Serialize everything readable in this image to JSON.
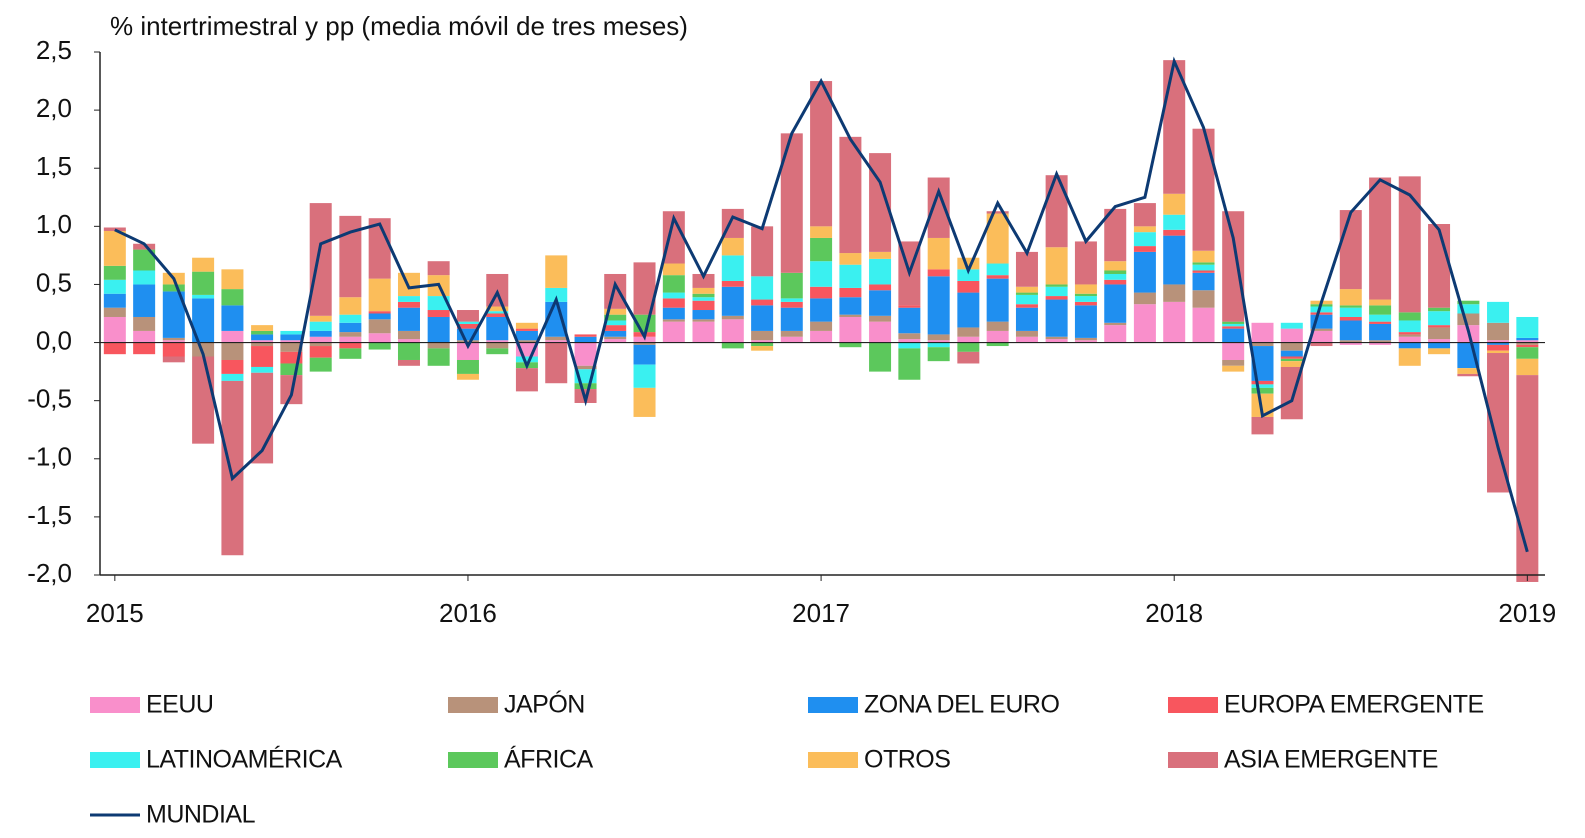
{
  "chart_data": {
    "type": "bar",
    "stacked": true,
    "title": "% intertrimestral y pp (media móvil de tres meses)",
    "x": [
      2015,
      2015.083,
      2015.167,
      2015.25,
      2015.333,
      2015.417,
      2015.5,
      2015.583,
      2015.667,
      2015.75,
      2015.833,
      2015.917,
      2016,
      2016.083,
      2016.167,
      2016.25,
      2016.333,
      2016.417,
      2016.5,
      2016.583,
      2016.667,
      2016.75,
      2016.833,
      2016.917,
      2017,
      2017.083,
      2017.167,
      2017.25,
      2017.333,
      2017.417,
      2017.5,
      2017.583,
      2017.667,
      2017.75,
      2017.833,
      2017.917,
      2018,
      2018.083,
      2018.167,
      2018.25,
      2018.333,
      2018.417,
      2018.5,
      2018.583,
      2018.667,
      2018.75,
      2018.833,
      2018.917,
      2019
    ],
    "xlim": [
      2014.958,
      2019.05
    ],
    "xticks": [
      2015,
      2016,
      2017,
      2018,
      2019
    ],
    "ylim": [
      -2.0,
      2.5
    ],
    "yticks": [
      {
        "value": -2.0,
        "label": "-2,0"
      },
      {
        "value": -1.5,
        "label": "-1,5"
      },
      {
        "value": -1.0,
        "label": "-1,0"
      },
      {
        "value": -0.5,
        "label": "-0,5"
      },
      {
        "value": 0.0,
        "label": "0,0"
      },
      {
        "value": 0.5,
        "label": "0,5"
      },
      {
        "value": 1.0,
        "label": "1,0"
      },
      {
        "value": 1.5,
        "label": "1,5"
      },
      {
        "value": 2.0,
        "label": "2,0"
      },
      {
        "value": 2.5,
        "label": "2,5"
      }
    ],
    "series": [
      {
        "name": "EEUU",
        "color": "#f98fcb",
        "values": [
          0.22,
          0.1,
          0.02,
          0,
          0.1,
          0.02,
          0.02,
          0.05,
          0.05,
          0.08,
          0.03,
          0,
          -0.15,
          0.02,
          -0.12,
          0.02,
          -0.2,
          0.03,
          0.05,
          0.18,
          0.18,
          0.2,
          0.02,
          0.05,
          0.1,
          0.22,
          0.18,
          0.03,
          0.02,
          0.05,
          0.1,
          0.05,
          0.03,
          0.02,
          0.15,
          0.33,
          0.35,
          0.3,
          -0.15,
          0.17,
          0.12,
          0.1,
          -0.02,
          -0.02,
          0.05,
          0.03,
          0.15,
          0.02,
          0.02
        ]
      },
      {
        "name": "JAPÓN",
        "color": "#b8927a",
        "values": [
          0.08,
          0.12,
          0.02,
          -0.12,
          -0.15,
          -0.03,
          -0.08,
          -0.03,
          0.04,
          0.12,
          0.07,
          -0.05,
          0.02,
          -0.05,
          0.02,
          0.03,
          -0.03,
          0.02,
          -0.02,
          0.02,
          0.02,
          0.03,
          0.08,
          0.05,
          0.08,
          0.02,
          0.05,
          0.05,
          0.05,
          0.08,
          0.08,
          0.05,
          0.02,
          0.02,
          0.02,
          0.1,
          0.15,
          0.15,
          -0.05,
          -0.03,
          -0.07,
          0.02,
          0.02,
          0.02,
          0.02,
          0.1,
          0.1,
          0.15,
          -0.02
        ]
      },
      {
        "name": "ZONA DEL EURO",
        "color": "#1f8ff0",
        "values": [
          0.12,
          0.28,
          0.4,
          0.38,
          0.22,
          0.05,
          0.05,
          0.05,
          0.08,
          0.05,
          0.2,
          0.22,
          0.1,
          0.2,
          0.08,
          0.3,
          0.05,
          0.05,
          -0.17,
          0.1,
          0.08,
          0.25,
          0.22,
          0.2,
          0.2,
          0.15,
          0.22,
          0.22,
          0.5,
          0.3,
          0.37,
          0.2,
          0.32,
          0.28,
          0.33,
          0.35,
          0.42,
          0.15,
          0.12,
          -0.3,
          -0.05,
          0.12,
          0.17,
          0.14,
          -0.05,
          -0.05,
          -0.22,
          -0.02,
          0.02
        ]
      },
      {
        "name": "EUROPA EMERGENTE",
        "color": "#f8565e",
        "values": [
          -0.1,
          -0.1,
          -0.12,
          0,
          -0.12,
          -0.18,
          -0.1,
          -0.1,
          -0.05,
          0.02,
          0.05,
          0.06,
          0.04,
          0.03,
          0.02,
          0,
          0.02,
          0.05,
          0.04,
          0.08,
          0.08,
          0.05,
          0.05,
          0.05,
          0.1,
          0.08,
          0.05,
          0.02,
          0.06,
          0.1,
          0.03,
          0.03,
          0.03,
          0.03,
          0.04,
          0.05,
          0.05,
          0.02,
          0.02,
          -0.03,
          -0.02,
          0.02,
          0.03,
          0.02,
          0.02,
          0.02,
          0,
          -0.05,
          -0.02
        ]
      },
      {
        "name": "LATINOAMÉRICA",
        "color": "#3af0f0",
        "values": [
          0.12,
          0.12,
          0,
          0.03,
          -0.06,
          -0.05,
          0.03,
          0.08,
          0.07,
          0,
          0.05,
          0.12,
          0.02,
          0.02,
          -0.05,
          0.12,
          -0.12,
          0.04,
          -0.2,
          0.05,
          0.03,
          0.22,
          0.2,
          0.03,
          0.22,
          0.2,
          0.22,
          -0.05,
          -0.04,
          0.1,
          0.1,
          0.08,
          0.08,
          0.05,
          0.05,
          0.12,
          0.13,
          0.05,
          0.02,
          -0.03,
          0.05,
          0.05,
          0.08,
          0.06,
          0.1,
          0.12,
          0.08,
          0.18,
          0.18
        ]
      },
      {
        "name": "ÁFRICA",
        "color": "#5cc85c",
        "values": [
          0.12,
          0.18,
          0.06,
          0.2,
          0.14,
          0.03,
          -0.1,
          -0.12,
          -0.09,
          -0.06,
          -0.15,
          -0.15,
          -0.12,
          -0.05,
          -0.05,
          0,
          -0.05,
          0.05,
          0.15,
          0.15,
          0.03,
          -0.05,
          -0.03,
          0.22,
          0.2,
          -0.04,
          -0.25,
          -0.27,
          -0.12,
          -0.08,
          -0.03,
          0.02,
          0.02,
          0.02,
          0.03,
          0,
          0,
          0.02,
          0.02,
          -0.05,
          -0.02,
          0.02,
          0.02,
          0.08,
          0.07,
          0.03,
          0.03,
          0,
          -0.1
        ]
      },
      {
        "name": "OTROS",
        "color": "#fbbd5a",
        "values": [
          0.3,
          0,
          0.1,
          0.12,
          0.17,
          0.05,
          0,
          0.05,
          0.15,
          0.28,
          0.2,
          0.18,
          -0.05,
          0.04,
          0.05,
          0.28,
          0,
          0.05,
          -0.25,
          0.1,
          0.05,
          0.15,
          -0.04,
          0,
          0.1,
          0.1,
          0.06,
          0,
          0.27,
          0.1,
          0.43,
          0.05,
          0.32,
          0.08,
          0.08,
          0.05,
          0.18,
          0.1,
          -0.05,
          -0.2,
          -0.05,
          0.03,
          0.14,
          0.05,
          -0.15,
          -0.05,
          -0.05,
          -0.02,
          -0.14
        ]
      },
      {
        "name": "ASIA EMERGENTE",
        "color": "#d9707c",
        "values": [
          0.03,
          0.05,
          -0.05,
          -0.75,
          -1.5,
          -0.78,
          -0.25,
          0.97,
          0.7,
          0.52,
          -0.05,
          0.12,
          0.1,
          0.28,
          -0.2,
          -0.35,
          -0.12,
          0.3,
          0.45,
          0.45,
          0.12,
          0.25,
          0.43,
          1.2,
          1.25,
          1.0,
          0.85,
          0.55,
          0.52,
          -0.1,
          0.02,
          0.3,
          0.62,
          0.37,
          0.45,
          0.2,
          1.15,
          1.05,
          0.95,
          -0.15,
          -0.45,
          -0.03,
          0.68,
          1.05,
          1.17,
          0.72,
          -0.02,
          -1.2,
          -1.78
        ]
      },
      {
        "name": "MUNDIAL",
        "type": "line",
        "color": "#0d3a73",
        "values": [
          0.97,
          0.85,
          0.55,
          -0.1,
          -1.17,
          -0.93,
          -0.45,
          0.85,
          0.95,
          1.02,
          0.47,
          0.5,
          -0.03,
          0.43,
          -0.2,
          0.37,
          -0.5,
          0.5,
          0.05,
          1.07,
          0.57,
          1.08,
          0.98,
          1.8,
          2.25,
          1.75,
          1.38,
          0.6,
          1.3,
          0.62,
          1.2,
          0.77,
          1.45,
          0.87,
          1.17,
          1.25,
          2.42,
          1.85,
          0.9,
          -0.63,
          -0.5,
          0.35,
          1.12,
          1.4,
          1.27,
          0.97,
          0.1,
          -0.9,
          -1.8
        ]
      }
    ]
  }
}
